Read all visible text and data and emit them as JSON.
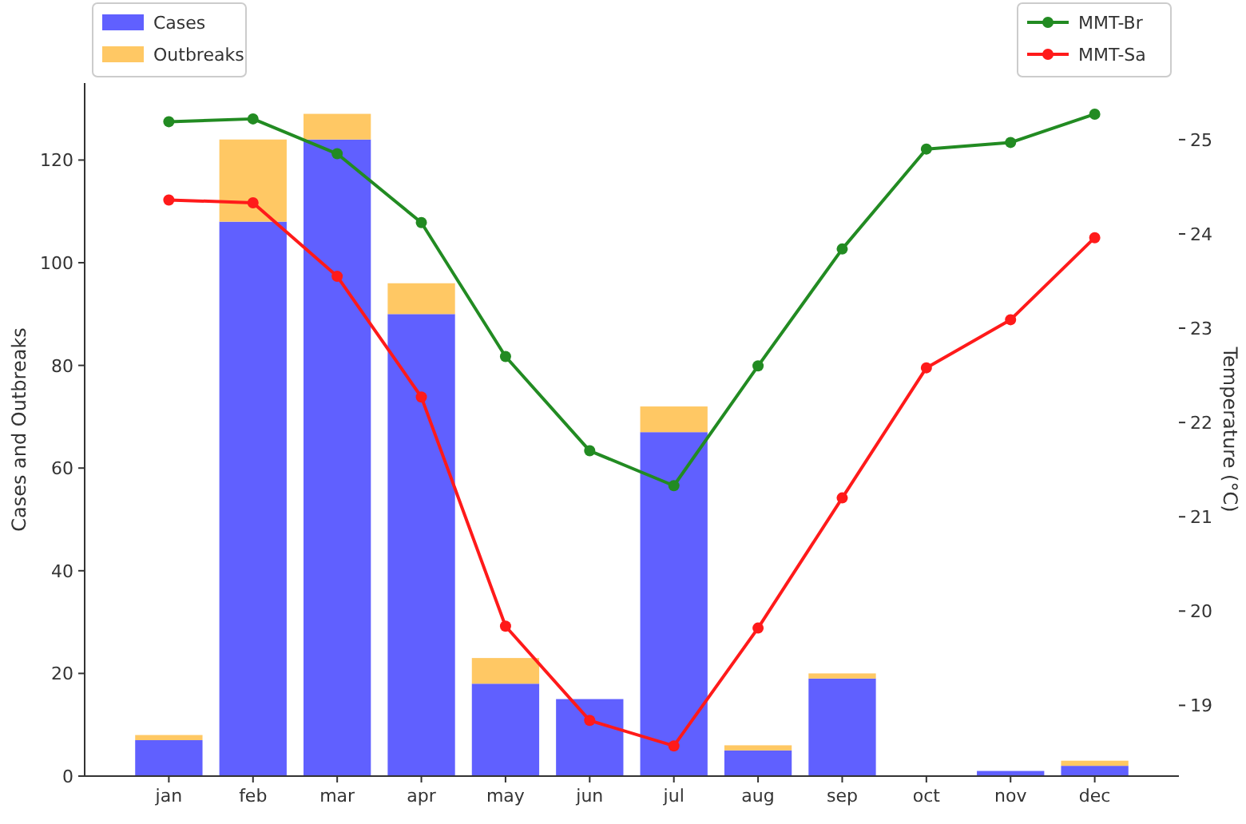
{
  "chart_data": {
    "type": "bar",
    "stacked": true,
    "categories": [
      "jan",
      "feb",
      "mar",
      "apr",
      "may",
      "jun",
      "jul",
      "aug",
      "sep",
      "oct",
      "nov",
      "dec"
    ],
    "ylabel": "Cases and Outbreaks",
    "y2label": "Temperature (°C)",
    "ylim": [
      0,
      135
    ],
    "yticks": [
      0,
      20,
      40,
      60,
      80,
      100,
      120
    ],
    "y2lim": [
      18.25,
      25.6
    ],
    "y2ticks": [
      19,
      20,
      21,
      22,
      23,
      24,
      25
    ],
    "grid": false,
    "legend": "top",
    "marker": "circle",
    "line_style": "solid",
    "series": [
      {
        "name": "Cases",
        "color": "#6060ff",
        "values": [
          7,
          108,
          124,
          90,
          18,
          15,
          67,
          5,
          19,
          0,
          1,
          2
        ]
      },
      {
        "name": "Outbreaks",
        "color": "#ffc864",
        "values": [
          1,
          16,
          5,
          6,
          5,
          0,
          5,
          1,
          1,
          0,
          0,
          1
        ]
      },
      {
        "name": "MMT-Br",
        "type": "line",
        "axis": "y2",
        "color": "#228b22",
        "values": [
          25.19,
          25.22,
          24.85,
          24.12,
          22.7,
          21.7,
          21.33,
          22.6,
          23.84,
          24.9,
          24.97,
          25.27
        ]
      },
      {
        "name": "MMT-Sa",
        "type": "line",
        "axis": "y2",
        "color": "#ff1a1a",
        "values": [
          24.36,
          24.33,
          23.55,
          22.27,
          19.84,
          18.84,
          18.57,
          19.82,
          21.2,
          22.58,
          23.09,
          23.96
        ]
      }
    ]
  }
}
